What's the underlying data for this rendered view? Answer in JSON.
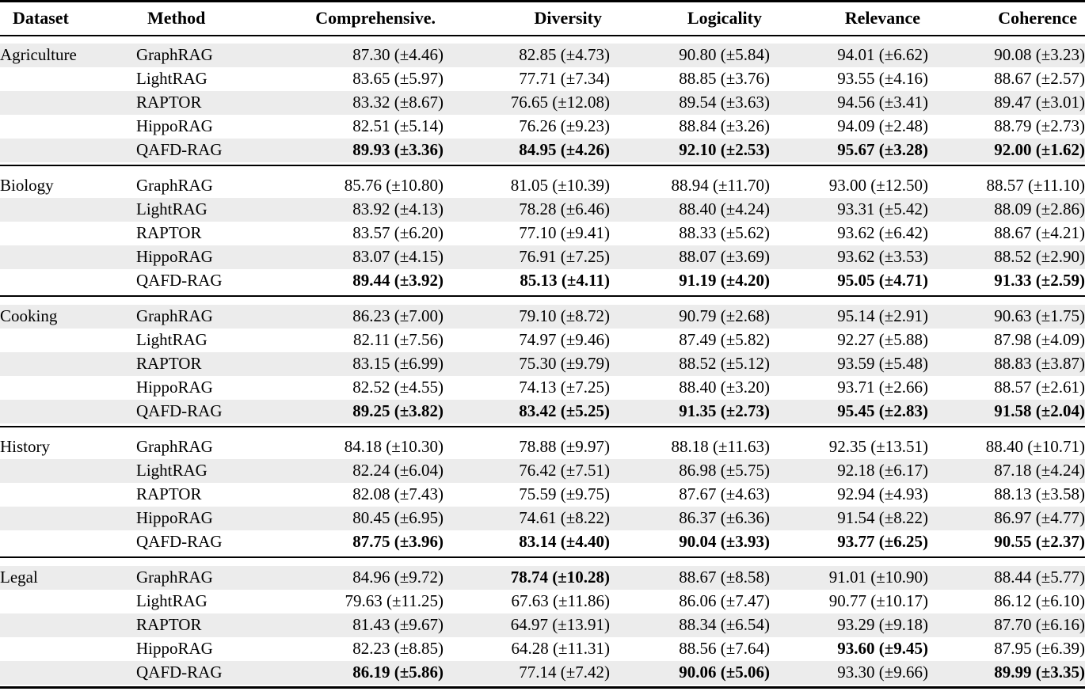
{
  "page": {
    "background": "#ffffff",
    "stripe_color": "#ececec",
    "rule_color": "#000000",
    "pm_symbol": "±"
  },
  "table": {
    "columns": [
      {
        "label": "Dataset",
        "align": "left"
      },
      {
        "label": "Method",
        "align": "left"
      },
      {
        "label": "Comprehensive.",
        "align": "right"
      },
      {
        "label": "Diversity",
        "align": "right"
      },
      {
        "label": "Logicality",
        "align": "right"
      },
      {
        "label": "Relevance",
        "align": "right"
      },
      {
        "label": "Coherence",
        "align": "right"
      }
    ],
    "groups": [
      {
        "dataset": "Agriculture",
        "rows": [
          {
            "method": "GraphRAG",
            "cells": [
              {
                "m": "87.30",
                "s": "4.46",
                "b": false
              },
              {
                "m": "82.85",
                "s": "4.73",
                "b": false
              },
              {
                "m": "90.80",
                "s": "5.84",
                "b": false
              },
              {
                "m": "94.01",
                "s": "6.62",
                "b": false
              },
              {
                "m": "90.08",
                "s": "3.23",
                "b": false
              }
            ]
          },
          {
            "method": "LightRAG",
            "cells": [
              {
                "m": "83.65",
                "s": "5.97",
                "b": false
              },
              {
                "m": "77.71",
                "s": "7.34",
                "b": false
              },
              {
                "m": "88.85",
                "s": "3.76",
                "b": false
              },
              {
                "m": "93.55",
                "s": "4.16",
                "b": false
              },
              {
                "m": "88.67",
                "s": "2.57",
                "b": false
              }
            ]
          },
          {
            "method": "RAPTOR",
            "cells": [
              {
                "m": "83.32",
                "s": "8.67",
                "b": false
              },
              {
                "m": "76.65",
                "s": "12.08",
                "b": false
              },
              {
                "m": "89.54",
                "s": "3.63",
                "b": false
              },
              {
                "m": "94.56",
                "s": "3.41",
                "b": false
              },
              {
                "m": "89.47",
                "s": "3.01",
                "b": false
              }
            ]
          },
          {
            "method": "HippoRAG",
            "cells": [
              {
                "m": "82.51",
                "s": "5.14",
                "b": false
              },
              {
                "m": "76.26",
                "s": "9.23",
                "b": false
              },
              {
                "m": "88.84",
                "s": "3.26",
                "b": false
              },
              {
                "m": "94.09",
                "s": "2.48",
                "b": false
              },
              {
                "m": "88.79",
                "s": "2.73",
                "b": false
              }
            ]
          },
          {
            "method": "QAFD-RAG",
            "cells": [
              {
                "m": "89.93",
                "s": "3.36",
                "b": true
              },
              {
                "m": "84.95",
                "s": "4.26",
                "b": true
              },
              {
                "m": "92.10",
                "s": "2.53",
                "b": true
              },
              {
                "m": "95.67",
                "s": "3.28",
                "b": true
              },
              {
                "m": "92.00",
                "s": "1.62",
                "b": true
              }
            ]
          }
        ]
      },
      {
        "dataset": "Biology",
        "rows": [
          {
            "method": "GraphRAG",
            "cells": [
              {
                "m": "85.76",
                "s": "10.80",
                "b": false
              },
              {
                "m": "81.05",
                "s": "10.39",
                "b": false
              },
              {
                "m": "88.94",
                "s": "11.70",
                "b": false
              },
              {
                "m": "93.00",
                "s": "12.50",
                "b": false
              },
              {
                "m": "88.57",
                "s": "11.10",
                "b": false
              }
            ]
          },
          {
            "method": "LightRAG",
            "cells": [
              {
                "m": "83.92",
                "s": "4.13",
                "b": false
              },
              {
                "m": "78.28",
                "s": "6.46",
                "b": false
              },
              {
                "m": "88.40",
                "s": "4.24",
                "b": false
              },
              {
                "m": "93.31",
                "s": "5.42",
                "b": false
              },
              {
                "m": "88.09",
                "s": "2.86",
                "b": false
              }
            ]
          },
          {
            "method": "RAPTOR",
            "cells": [
              {
                "m": "83.57",
                "s": "6.20",
                "b": false
              },
              {
                "m": "77.10",
                "s": "9.41",
                "b": false
              },
              {
                "m": "88.33",
                "s": "5.62",
                "b": false
              },
              {
                "m": "93.62",
                "s": "6.42",
                "b": false
              },
              {
                "m": "88.67",
                "s": "4.21",
                "b": false
              }
            ]
          },
          {
            "method": "HippoRAG",
            "cells": [
              {
                "m": "83.07",
                "s": "4.15",
                "b": false
              },
              {
                "m": "76.91",
                "s": "7.25",
                "b": false
              },
              {
                "m": "88.07",
                "s": "3.69",
                "b": false
              },
              {
                "m": "93.62",
                "s": "3.53",
                "b": false
              },
              {
                "m": "88.52",
                "s": "2.90",
                "b": false
              }
            ]
          },
          {
            "method": "QAFD-RAG",
            "cells": [
              {
                "m": "89.44",
                "s": "3.92",
                "b": true
              },
              {
                "m": "85.13",
                "s": "4.11",
                "b": true
              },
              {
                "m": "91.19",
                "s": "4.20",
                "b": true
              },
              {
                "m": "95.05",
                "s": "4.71",
                "b": true
              },
              {
                "m": "91.33",
                "s": "2.59",
                "b": true
              }
            ]
          }
        ]
      },
      {
        "dataset": "Cooking",
        "rows": [
          {
            "method": "GraphRAG",
            "cells": [
              {
                "m": "86.23",
                "s": "7.00",
                "b": false
              },
              {
                "m": "79.10",
                "s": "8.72",
                "b": false
              },
              {
                "m": "90.79",
                "s": "2.68",
                "b": false
              },
              {
                "m": "95.14",
                "s": "2.91",
                "b": false
              },
              {
                "m": "90.63",
                "s": "1.75",
                "b": false
              }
            ]
          },
          {
            "method": "LightRAG",
            "cells": [
              {
                "m": "82.11",
                "s": "7.56",
                "b": false
              },
              {
                "m": "74.97",
                "s": "9.46",
                "b": false
              },
              {
                "m": "87.49",
                "s": "5.82",
                "b": false
              },
              {
                "m": "92.27",
                "s": "5.88",
                "b": false
              },
              {
                "m": "87.98",
                "s": "4.09",
                "b": false
              }
            ]
          },
          {
            "method": "RAPTOR",
            "cells": [
              {
                "m": "83.15",
                "s": "6.99",
                "b": false
              },
              {
                "m": "75.30",
                "s": "9.79",
                "b": false
              },
              {
                "m": "88.52",
                "s": "5.12",
                "b": false
              },
              {
                "m": "93.59",
                "s": "5.48",
                "b": false
              },
              {
                "m": "88.83",
                "s": "3.87",
                "b": false
              }
            ]
          },
          {
            "method": "HippoRAG",
            "cells": [
              {
                "m": "82.52",
                "s": "4.55",
                "b": false
              },
              {
                "m": "74.13",
                "s": "7.25",
                "b": false
              },
              {
                "m": "88.40",
                "s": "3.20",
                "b": false
              },
              {
                "m": "93.71",
                "s": "2.66",
                "b": false
              },
              {
                "m": "88.57",
                "s": "2.61",
                "b": false
              }
            ]
          },
          {
            "method": "QAFD-RAG",
            "cells": [
              {
                "m": "89.25",
                "s": "3.82",
                "b": true
              },
              {
                "m": "83.42",
                "s": "5.25",
                "b": true
              },
              {
                "m": "91.35",
                "s": "2.73",
                "b": true
              },
              {
                "m": "95.45",
                "s": "2.83",
                "b": true
              },
              {
                "m": "91.58",
                "s": "2.04",
                "b": true
              }
            ]
          }
        ]
      },
      {
        "dataset": "History",
        "rows": [
          {
            "method": "GraphRAG",
            "cells": [
              {
                "m": "84.18",
                "s": "10.30",
                "b": false
              },
              {
                "m": "78.88",
                "s": "9.97",
                "b": false
              },
              {
                "m": "88.18",
                "s": "11.63",
                "b": false
              },
              {
                "m": "92.35",
                "s": "13.51",
                "b": false
              },
              {
                "m": "88.40",
                "s": "10.71",
                "b": false
              }
            ]
          },
          {
            "method": "LightRAG",
            "cells": [
              {
                "m": "82.24",
                "s": "6.04",
                "b": false
              },
              {
                "m": "76.42",
                "s": "7.51",
                "b": false
              },
              {
                "m": "86.98",
                "s": "5.75",
                "b": false
              },
              {
                "m": "92.18",
                "s": "6.17",
                "b": false
              },
              {
                "m": "87.18",
                "s": "4.24",
                "b": false
              }
            ]
          },
          {
            "method": "RAPTOR",
            "cells": [
              {
                "m": "82.08",
                "s": "7.43",
                "b": false
              },
              {
                "m": "75.59",
                "s": "9.75",
                "b": false
              },
              {
                "m": "87.67",
                "s": "4.63",
                "b": false
              },
              {
                "m": "92.94",
                "s": "4.93",
                "b": false
              },
              {
                "m": "88.13",
                "s": "3.58",
                "b": false
              }
            ]
          },
          {
            "method": "HippoRAG",
            "cells": [
              {
                "m": "80.45",
                "s": "6.95",
                "b": false
              },
              {
                "m": "74.61",
                "s": "8.22",
                "b": false
              },
              {
                "m": "86.37",
                "s": "6.36",
                "b": false
              },
              {
                "m": "91.54",
                "s": "8.22",
                "b": false
              },
              {
                "m": "86.97",
                "s": "4.77",
                "b": false
              }
            ]
          },
          {
            "method": "QAFD-RAG",
            "cells": [
              {
                "m": "87.75",
                "s": "3.96",
                "b": true
              },
              {
                "m": "83.14",
                "s": "4.40",
                "b": true
              },
              {
                "m": "90.04",
                "s": "3.93",
                "b": true
              },
              {
                "m": "93.77",
                "s": "6.25",
                "b": true
              },
              {
                "m": "90.55",
                "s": "2.37",
                "b": true
              }
            ]
          }
        ]
      },
      {
        "dataset": "Legal",
        "rows": [
          {
            "method": "GraphRAG",
            "cells": [
              {
                "m": "84.96",
                "s": "9.72",
                "b": false
              },
              {
                "m": "78.74",
                "s": "10.28",
                "b": true
              },
              {
                "m": "88.67",
                "s": "8.58",
                "b": false
              },
              {
                "m": "91.01",
                "s": "10.90",
                "b": false
              },
              {
                "m": "88.44",
                "s": "5.77",
                "b": false
              }
            ]
          },
          {
            "method": "LightRAG",
            "cells": [
              {
                "m": "79.63",
                "s": "11.25",
                "b": false
              },
              {
                "m": "67.63",
                "s": "11.86",
                "b": false
              },
              {
                "m": "86.06",
                "s": "7.47",
                "b": false
              },
              {
                "m": "90.77",
                "s": "10.17",
                "b": false
              },
              {
                "m": "86.12",
                "s": "6.10",
                "b": false
              }
            ]
          },
          {
            "method": "RAPTOR",
            "cells": [
              {
                "m": "81.43",
                "s": "9.67",
                "b": false
              },
              {
                "m": "64.97",
                "s": "13.91",
                "b": false
              },
              {
                "m": "88.34",
                "s": "6.54",
                "b": false
              },
              {
                "m": "93.29",
                "s": "9.18",
                "b": false
              },
              {
                "m": "87.70",
                "s": "6.16",
                "b": false
              }
            ]
          },
          {
            "method": "HippoRAG",
            "cells": [
              {
                "m": "82.23",
                "s": "8.85",
                "b": false
              },
              {
                "m": "64.28",
                "s": "11.31",
                "b": false
              },
              {
                "m": "88.56",
                "s": "7.64",
                "b": false
              },
              {
                "m": "93.60",
                "s": "9.45",
                "b": true
              },
              {
                "m": "87.95",
                "s": "6.39",
                "b": false
              }
            ]
          },
          {
            "method": "QAFD-RAG",
            "cells": [
              {
                "m": "86.19",
                "s": "5.86",
                "b": true
              },
              {
                "m": "77.14",
                "s": "7.42",
                "b": false
              },
              {
                "m": "90.06",
                "s": "5.06",
                "b": true
              },
              {
                "m": "93.30",
                "s": "9.66",
                "b": false
              },
              {
                "m": "89.99",
                "s": "3.35",
                "b": true
              }
            ]
          }
        ]
      }
    ]
  }
}
